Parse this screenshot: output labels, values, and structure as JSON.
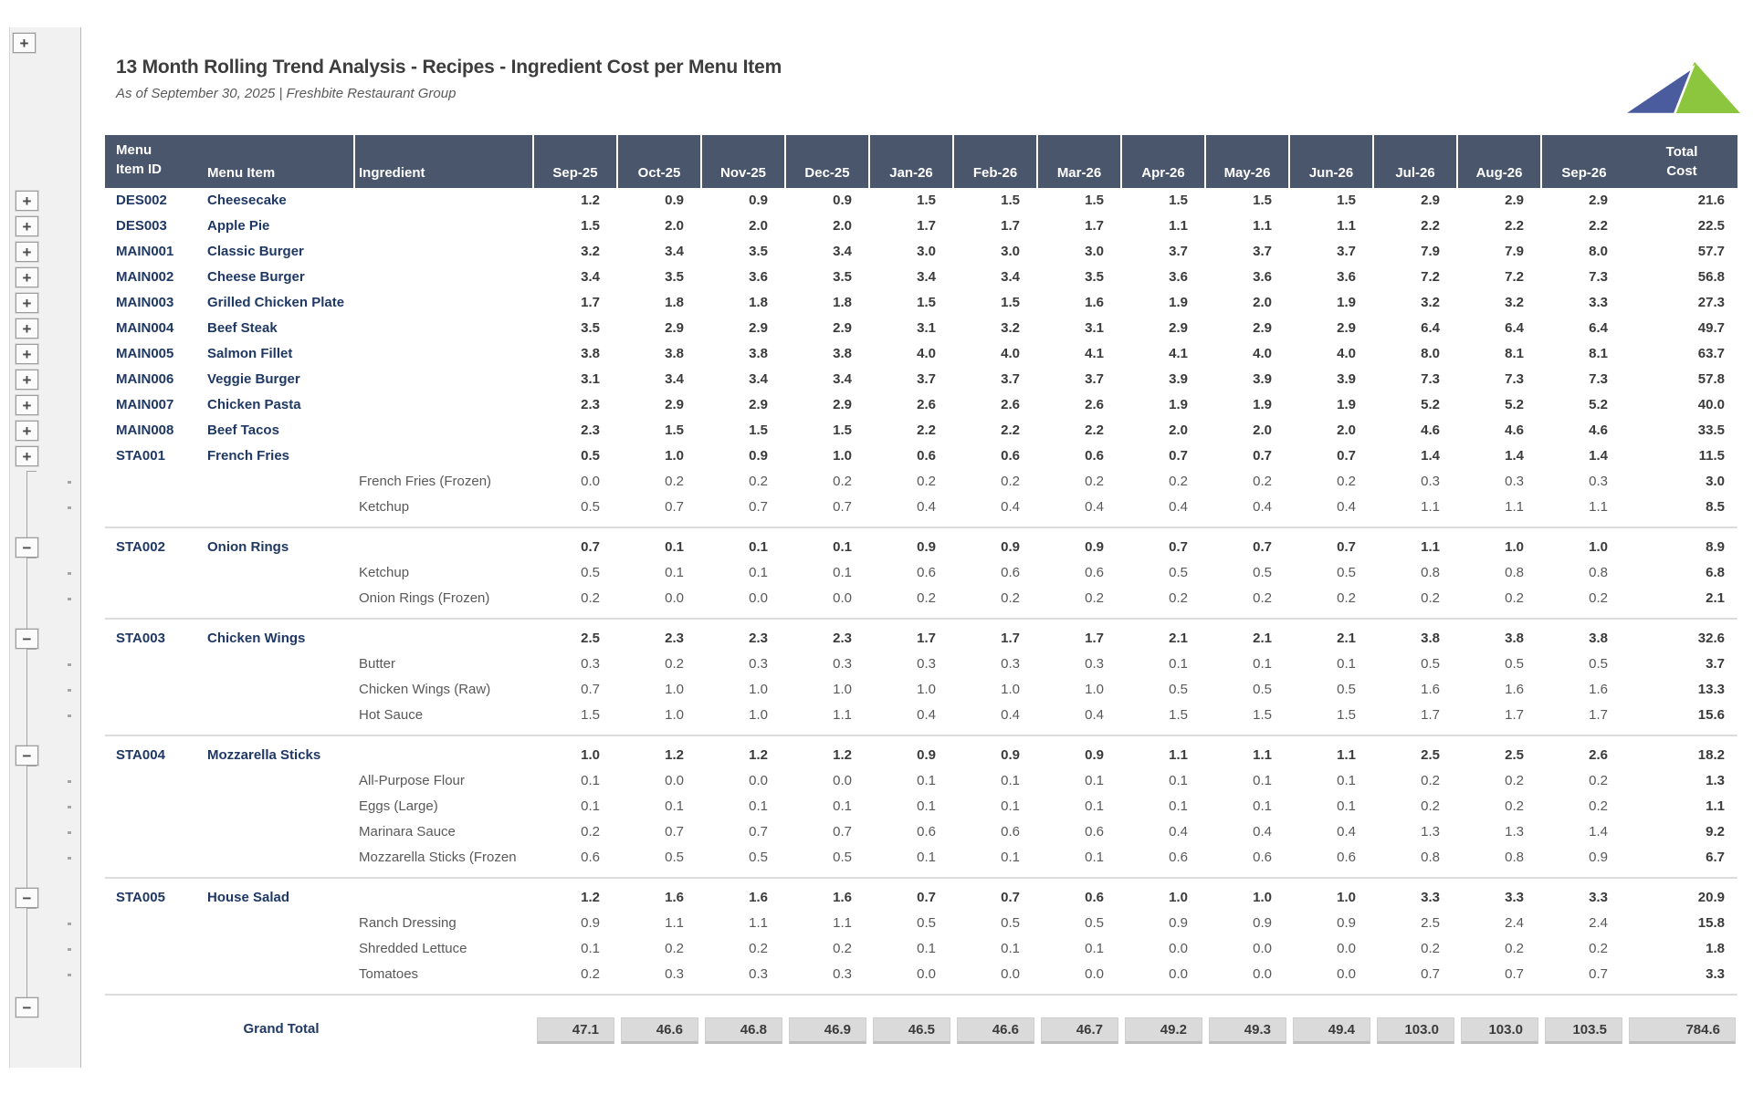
{
  "header": {
    "title": "13 Month Rolling Trend Analysis - Recipes - Ingredient Cost per Menu Item",
    "subtitle": "As of September 30, 2025 | Freshbite Restaurant Group"
  },
  "logo": {
    "name": "freshbite-logo",
    "blue": "#4a5b9e",
    "green": "#8cc63e"
  },
  "outline": {
    "plus": "+",
    "minus": "−"
  },
  "colors": {
    "header_bg": "#49566b",
    "navy_text": "#1f3864",
    "detail_text": "#595959",
    "chip_bg": "#dadada"
  },
  "table": {
    "columns": {
      "id_line1": "Menu",
      "id_line2": "Item ID",
      "item": "Menu Item",
      "ingredient": "Ingredient",
      "months": [
        "Sep-25",
        "Oct-25",
        "Nov-25",
        "Dec-25",
        "Jan-26",
        "Feb-26",
        "Mar-26",
        "Apr-26",
        "May-26",
        "Jun-26",
        "Jul-26",
        "Aug-26",
        "Sep-26"
      ],
      "total_line1": "Total",
      "total_line2": "Cost"
    },
    "rows": [
      {
        "type": "summary",
        "id": "DES002",
        "item": "Cheesecake",
        "ingredient": "",
        "values": [
          "1.2",
          "0.9",
          "0.9",
          "0.9",
          "1.5",
          "1.5",
          "1.5",
          "1.5",
          "1.5",
          "1.5",
          "2.9",
          "2.9",
          "2.9"
        ],
        "total": "21.6"
      },
      {
        "type": "summary",
        "id": "DES003",
        "item": "Apple Pie",
        "ingredient": "",
        "values": [
          "1.5",
          "2.0",
          "2.0",
          "2.0",
          "1.7",
          "1.7",
          "1.7",
          "1.1",
          "1.1",
          "1.1",
          "2.2",
          "2.2",
          "2.2"
        ],
        "total": "22.5"
      },
      {
        "type": "summary",
        "id": "MAIN001",
        "item": "Classic Burger",
        "ingredient": "",
        "values": [
          "3.2",
          "3.4",
          "3.5",
          "3.4",
          "3.0",
          "3.0",
          "3.0",
          "3.7",
          "3.7",
          "3.7",
          "7.9",
          "7.9",
          "8.0"
        ],
        "total": "57.7"
      },
      {
        "type": "summary",
        "id": "MAIN002",
        "item": "Cheese Burger",
        "ingredient": "",
        "values": [
          "3.4",
          "3.5",
          "3.6",
          "3.5",
          "3.4",
          "3.4",
          "3.5",
          "3.6",
          "3.6",
          "3.6",
          "7.2",
          "7.2",
          "7.3"
        ],
        "total": "56.8"
      },
      {
        "type": "summary",
        "id": "MAIN003",
        "item": "Grilled Chicken Plate",
        "ingredient": "",
        "values": [
          "1.7",
          "1.8",
          "1.8",
          "1.8",
          "1.5",
          "1.5",
          "1.6",
          "1.9",
          "2.0",
          "1.9",
          "3.2",
          "3.2",
          "3.3"
        ],
        "total": "27.3"
      },
      {
        "type": "summary",
        "id": "MAIN004",
        "item": "Beef Steak",
        "ingredient": "",
        "values": [
          "3.5",
          "2.9",
          "2.9",
          "2.9",
          "3.1",
          "3.2",
          "3.1",
          "2.9",
          "2.9",
          "2.9",
          "6.4",
          "6.4",
          "6.4"
        ],
        "total": "49.7"
      },
      {
        "type": "summary",
        "id": "MAIN005",
        "item": "Salmon Fillet",
        "ingredient": "",
        "values": [
          "3.8",
          "3.8",
          "3.8",
          "3.8",
          "4.0",
          "4.0",
          "4.1",
          "4.1",
          "4.0",
          "4.0",
          "8.0",
          "8.1",
          "8.1"
        ],
        "total": "63.7"
      },
      {
        "type": "summary",
        "id": "MAIN006",
        "item": "Veggie Burger",
        "ingredient": "",
        "values": [
          "3.1",
          "3.4",
          "3.4",
          "3.4",
          "3.7",
          "3.7",
          "3.7",
          "3.9",
          "3.9",
          "3.9",
          "7.3",
          "7.3",
          "7.3"
        ],
        "total": "57.8"
      },
      {
        "type": "summary",
        "id": "MAIN007",
        "item": "Chicken Pasta",
        "ingredient": "",
        "values": [
          "2.3",
          "2.9",
          "2.9",
          "2.9",
          "2.6",
          "2.6",
          "2.6",
          "1.9",
          "1.9",
          "1.9",
          "5.2",
          "5.2",
          "5.2"
        ],
        "total": "40.0"
      },
      {
        "type": "summary",
        "id": "MAIN008",
        "item": "Beef Tacos",
        "ingredient": "",
        "values": [
          "2.3",
          "1.5",
          "1.5",
          "1.5",
          "2.2",
          "2.2",
          "2.2",
          "2.0",
          "2.0",
          "2.0",
          "4.6",
          "4.6",
          "4.6"
        ],
        "total": "33.5"
      },
      {
        "type": "summary",
        "id": "STA001",
        "item": "French Fries",
        "ingredient": "",
        "values": [
          "0.5",
          "1.0",
          "0.9",
          "1.0",
          "0.6",
          "0.6",
          "0.6",
          "0.7",
          "0.7",
          "0.7",
          "1.4",
          "1.4",
          "1.4"
        ],
        "total": "11.5"
      },
      {
        "type": "detail",
        "id": "",
        "item": "",
        "ingredient": "French Fries (Frozen)",
        "values": [
          "0.0",
          "0.2",
          "0.2",
          "0.2",
          "0.2",
          "0.2",
          "0.2",
          "0.2",
          "0.2",
          "0.2",
          "0.3",
          "0.3",
          "0.3"
        ],
        "total": "3.0"
      },
      {
        "type": "detail",
        "id": "",
        "item": "",
        "ingredient": "Ketchup",
        "values": [
          "0.5",
          "0.7",
          "0.7",
          "0.7",
          "0.4",
          "0.4",
          "0.4",
          "0.4",
          "0.4",
          "0.4",
          "1.1",
          "1.1",
          "1.1"
        ],
        "total": "8.5"
      },
      {
        "type": "spacer"
      },
      {
        "type": "summary",
        "id": "STA002",
        "item": "Onion Rings",
        "ingredient": "",
        "values": [
          "0.7",
          "0.1",
          "0.1",
          "0.1",
          "0.9",
          "0.9",
          "0.9",
          "0.7",
          "0.7",
          "0.7",
          "1.1",
          "1.0",
          "1.0"
        ],
        "total": "8.9"
      },
      {
        "type": "detail",
        "id": "",
        "item": "",
        "ingredient": "Ketchup",
        "values": [
          "0.5",
          "0.1",
          "0.1",
          "0.1",
          "0.6",
          "0.6",
          "0.6",
          "0.5",
          "0.5",
          "0.5",
          "0.8",
          "0.8",
          "0.8"
        ],
        "total": "6.8"
      },
      {
        "type": "detail",
        "id": "",
        "item": "",
        "ingredient": "Onion Rings (Frozen)",
        "values": [
          "0.2",
          "0.0",
          "0.0",
          "0.0",
          "0.2",
          "0.2",
          "0.2",
          "0.2",
          "0.2",
          "0.2",
          "0.2",
          "0.2",
          "0.2"
        ],
        "total": "2.1"
      },
      {
        "type": "spacer"
      },
      {
        "type": "summary",
        "id": "STA003",
        "item": "Chicken Wings",
        "ingredient": "",
        "values": [
          "2.5",
          "2.3",
          "2.3",
          "2.3",
          "1.7",
          "1.7",
          "1.7",
          "2.1",
          "2.1",
          "2.1",
          "3.8",
          "3.8",
          "3.8"
        ],
        "total": "32.6"
      },
      {
        "type": "detail",
        "id": "",
        "item": "",
        "ingredient": "Butter",
        "values": [
          "0.3",
          "0.2",
          "0.3",
          "0.3",
          "0.3",
          "0.3",
          "0.3",
          "0.1",
          "0.1",
          "0.1",
          "0.5",
          "0.5",
          "0.5"
        ],
        "total": "3.7"
      },
      {
        "type": "detail",
        "id": "",
        "item": "",
        "ingredient": "Chicken Wings (Raw)",
        "values": [
          "0.7",
          "1.0",
          "1.0",
          "1.0",
          "1.0",
          "1.0",
          "1.0",
          "0.5",
          "0.5",
          "0.5",
          "1.6",
          "1.6",
          "1.6"
        ],
        "total": "13.3"
      },
      {
        "type": "detail",
        "id": "",
        "item": "",
        "ingredient": "Hot Sauce",
        "values": [
          "1.5",
          "1.0",
          "1.0",
          "1.1",
          "0.4",
          "0.4",
          "0.4",
          "1.5",
          "1.5",
          "1.5",
          "1.7",
          "1.7",
          "1.7"
        ],
        "total": "15.6"
      },
      {
        "type": "spacer"
      },
      {
        "type": "summary",
        "id": "STA004",
        "item": "Mozzarella Sticks",
        "ingredient": "",
        "values": [
          "1.0",
          "1.2",
          "1.2",
          "1.2",
          "0.9",
          "0.9",
          "0.9",
          "1.1",
          "1.1",
          "1.1",
          "2.5",
          "2.5",
          "2.6"
        ],
        "total": "18.2"
      },
      {
        "type": "detail",
        "id": "",
        "item": "",
        "ingredient": "All-Purpose Flour",
        "values": [
          "0.1",
          "0.0",
          "0.0",
          "0.0",
          "0.1",
          "0.1",
          "0.1",
          "0.1",
          "0.1",
          "0.1",
          "0.2",
          "0.2",
          "0.2"
        ],
        "total": "1.3"
      },
      {
        "type": "detail",
        "id": "",
        "item": "",
        "ingredient": "Eggs (Large)",
        "values": [
          "0.1",
          "0.1",
          "0.1",
          "0.1",
          "0.1",
          "0.1",
          "0.1",
          "0.1",
          "0.1",
          "0.1",
          "0.2",
          "0.2",
          "0.2"
        ],
        "total": "1.1"
      },
      {
        "type": "detail",
        "id": "",
        "item": "",
        "ingredient": "Marinara Sauce",
        "values": [
          "0.2",
          "0.7",
          "0.7",
          "0.7",
          "0.6",
          "0.6",
          "0.6",
          "0.4",
          "0.4",
          "0.4",
          "1.3",
          "1.3",
          "1.4"
        ],
        "total": "9.2"
      },
      {
        "type": "detail",
        "id": "",
        "item": "",
        "ingredient": "Mozzarella Sticks (Frozen",
        "values": [
          "0.6",
          "0.5",
          "0.5",
          "0.5",
          "0.1",
          "0.1",
          "0.1",
          "0.6",
          "0.6",
          "0.6",
          "0.8",
          "0.8",
          "0.9"
        ],
        "total": "6.7"
      },
      {
        "type": "spacer"
      },
      {
        "type": "summary",
        "id": "STA005",
        "item": "House Salad",
        "ingredient": "",
        "values": [
          "1.2",
          "1.6",
          "1.6",
          "1.6",
          "0.7",
          "0.7",
          "0.6",
          "1.0",
          "1.0",
          "1.0",
          "3.3",
          "3.3",
          "3.3"
        ],
        "total": "20.9"
      },
      {
        "type": "detail",
        "id": "",
        "item": "",
        "ingredient": "Ranch Dressing",
        "values": [
          "0.9",
          "1.1",
          "1.1",
          "1.1",
          "0.5",
          "0.5",
          "0.5",
          "0.9",
          "0.9",
          "0.9",
          "2.5",
          "2.4",
          "2.4"
        ],
        "total": "15.8"
      },
      {
        "type": "detail",
        "id": "",
        "item": "",
        "ingredient": "Shredded Lettuce",
        "values": [
          "0.1",
          "0.2",
          "0.2",
          "0.2",
          "0.1",
          "0.1",
          "0.1",
          "0.0",
          "0.0",
          "0.0",
          "0.2",
          "0.2",
          "0.2"
        ],
        "total": "1.8"
      },
      {
        "type": "detail",
        "id": "",
        "item": "",
        "ingredient": "Tomatoes",
        "values": [
          "0.2",
          "0.3",
          "0.3",
          "0.3",
          "0.0",
          "0.0",
          "0.0",
          "0.0",
          "0.0",
          "0.0",
          "0.7",
          "0.7",
          "0.7"
        ],
        "total": "3.3"
      },
      {
        "type": "spacer"
      },
      {
        "type": "gap"
      }
    ],
    "grand_total": {
      "label": "Grand Total",
      "values": [
        "47.1",
        "46.6",
        "46.8",
        "46.9",
        "46.5",
        "46.6",
        "46.7",
        "49.2",
        "49.3",
        "49.4",
        "103.0",
        "103.0",
        "103.5"
      ],
      "total": "784.6"
    }
  }
}
